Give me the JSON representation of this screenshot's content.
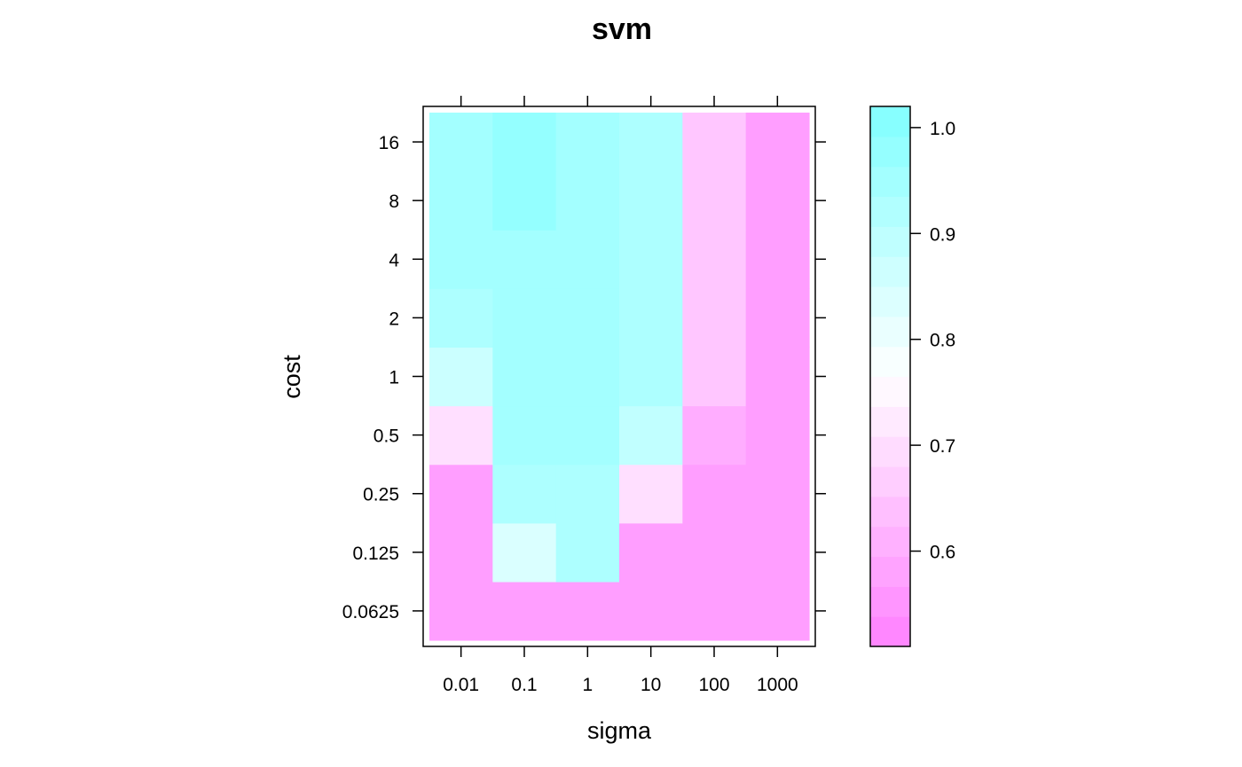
{
  "chart_data": {
    "type": "heatmap",
    "title": "svm",
    "xlabel": "sigma",
    "ylabel": "cost",
    "x_categories": [
      "0.01",
      "0.1",
      "1",
      "10",
      "100",
      "1000"
    ],
    "y_categories": [
      "0.0625",
      "0.125",
      "0.25",
      "0.5",
      "1",
      "2",
      "4",
      "8",
      "16"
    ],
    "values": [
      [
        0.57,
        0.57,
        0.57,
        0.57,
        0.57,
        0.57
      ],
      [
        0.57,
        0.84,
        0.93,
        0.57,
        0.57,
        0.57
      ],
      [
        0.57,
        0.93,
        0.93,
        0.7,
        0.57,
        0.57
      ],
      [
        0.7,
        0.95,
        0.95,
        0.89,
        0.6,
        0.57
      ],
      [
        0.87,
        0.95,
        0.95,
        0.93,
        0.65,
        0.57
      ],
      [
        0.93,
        0.95,
        0.95,
        0.93,
        0.65,
        0.57
      ],
      [
        0.95,
        0.95,
        0.95,
        0.93,
        0.65,
        0.57
      ],
      [
        0.95,
        0.98,
        0.95,
        0.93,
        0.65,
        0.57
      ],
      [
        0.95,
        0.98,
        0.95,
        0.93,
        0.65,
        0.57
      ]
    ],
    "colorkey": {
      "range": [
        0.51,
        1.02
      ],
      "ticks": [
        "0.6",
        "0.7",
        "0.8",
        "0.9",
        "1.0"
      ],
      "low_color": "#ff80ff",
      "mid_color": "#ffffff",
      "high_color": "#80ffff"
    },
    "grid": false,
    "legend": "right"
  }
}
